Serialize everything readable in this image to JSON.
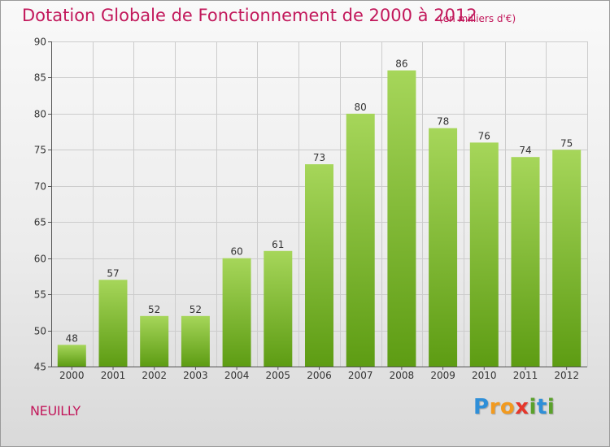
{
  "header": {
    "title": "Dotation Globale de Fonctionnement de 2000 à 2012",
    "unit": "(en milliers d'€)"
  },
  "footer": {
    "commune": "NEUILLY",
    "logo_text": "Proxiti"
  },
  "colors": {
    "title": "#c2185b",
    "bar_top": "#a6d65a",
    "bar_bottom": "#5d9c13",
    "grid": "#cccccc"
  },
  "chart_data": {
    "type": "bar",
    "title": "Dotation Globale de Fonctionnement de 2000 à 2012",
    "xlabel": "",
    "ylabel": "",
    "categories": [
      "2000",
      "2001",
      "2002",
      "2003",
      "2004",
      "2005",
      "2006",
      "2007",
      "2008",
      "2009",
      "2010",
      "2011",
      "2012"
    ],
    "values": [
      48,
      57,
      52,
      52,
      60,
      61,
      73,
      80,
      86,
      78,
      76,
      74,
      75
    ],
    "ylim": [
      45,
      90
    ],
    "yticks": [
      45,
      50,
      55,
      60,
      65,
      70,
      75,
      80,
      85,
      90
    ],
    "grid": true,
    "legend": "none"
  }
}
